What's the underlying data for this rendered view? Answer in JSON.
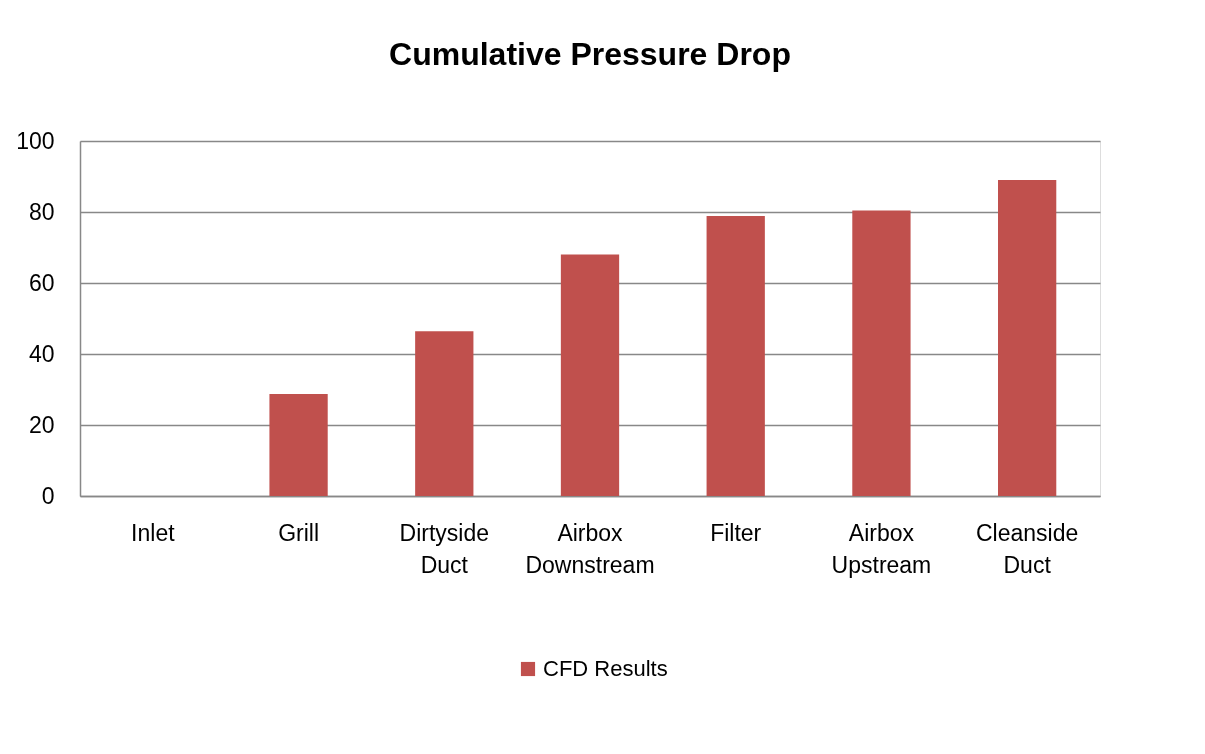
{
  "chart_data": {
    "type": "bar",
    "title": "Cumulative Pressure Drop",
    "categories": [
      "Inlet",
      "Grill",
      "Dirtyside Duct",
      "Airbox Downstream",
      "Filter",
      "Airbox Upstream",
      "Cleanside Duct"
    ],
    "series": [
      {
        "name": "CFD Results",
        "color": "#c0504d",
        "values": [
          0,
          28.7,
          46.4,
          68.0,
          78.9,
          80.4,
          89.0
        ]
      }
    ],
    "ylim": [
      0,
      100
    ],
    "yticks": [
      0,
      20,
      40,
      60,
      80,
      100
    ],
    "grid": "y",
    "legend": "bottom"
  }
}
